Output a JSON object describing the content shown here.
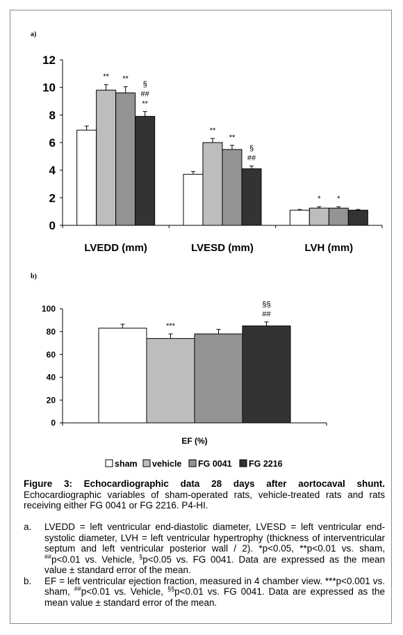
{
  "panel_a_label": "a)",
  "panel_b_label": "b)",
  "legend": [
    {
      "name": "sham",
      "color": "#ffffff"
    },
    {
      "name": "vehicle",
      "color": "#bdbdbd"
    },
    {
      "name": "FG 0041",
      "color": "#939393"
    },
    {
      "name": "FG 2216",
      "color": "#333333"
    }
  ],
  "chart_data": [
    {
      "type": "bar",
      "categories": [
        "LVEDD (mm)",
        "LVESD (mm)",
        "LVH (mm)"
      ],
      "series": [
        {
          "name": "sham",
          "values": [
            6.9,
            3.7,
            1.1
          ],
          "errors": [
            0.3,
            0.2,
            0.05
          ]
        },
        {
          "name": "vehicle",
          "values": [
            9.8,
            6.0,
            1.25
          ],
          "errors": [
            0.4,
            0.3,
            0.1
          ]
        },
        {
          "name": "FG 0041",
          "values": [
            9.6,
            5.5,
            1.25
          ],
          "errors": [
            0.45,
            0.3,
            0.1
          ]
        },
        {
          "name": "FG 2216",
          "values": [
            7.9,
            4.1,
            1.1
          ],
          "errors": [
            0.35,
            0.2,
            0.05
          ]
        }
      ],
      "annotations": [
        [
          "",
          "**",
          "**",
          "§\n##\n**"
        ],
        [
          "",
          "**",
          "**",
          "§\n##"
        ],
        [
          "",
          "*",
          "*",
          ""
        ]
      ],
      "ylim": [
        0,
        12
      ],
      "yticks": [
        "0",
        "2",
        "4",
        "6",
        "8",
        "10",
        "12"
      ],
      "grid": false
    },
    {
      "type": "bar",
      "categories": [
        "EF (%)"
      ],
      "xlabel": "EF (%)",
      "series": [
        {
          "name": "sham",
          "values": [
            83
          ],
          "errors": [
            3.5
          ]
        },
        {
          "name": "vehicle",
          "values": [
            74
          ],
          "errors": [
            4
          ]
        },
        {
          "name": "FG 0041",
          "values": [
            78
          ],
          "errors": [
            4
          ]
        },
        {
          "name": "FG 2216",
          "values": [
            85
          ],
          "errors": [
            3.5
          ]
        }
      ],
      "annotations": [
        [
          "",
          "***",
          "",
          "§§\n##"
        ]
      ],
      "ylim": [
        0,
        100
      ],
      "yticks": [
        "0",
        "20",
        "40",
        "60",
        "80",
        "100"
      ],
      "grid": false
    }
  ],
  "caption": {
    "title": "Figure 3: Echocardiographic data 28 days after aortocaval shunt.",
    "text": " Echocardiographic variables of sham-operated rats, vehicle-treated rats and rats receiving either FG 0041 or FG 2216. P4-HI."
  },
  "notes": [
    {
      "letter": "a.",
      "parts": [
        "LVEDD = left ventricular end-diastolic diameter, LVESD = left ventricular end-systolic diameter, LVH = left ventricular hypertrophy (thickness of interventricular septum and left ventricular posterior wall / 2). *p<0.05, **p<0.01 vs. sham, ",
        "##",
        "p<0.01 vs. Vehicle, ",
        "§",
        "p<0.05 vs. FG 0041.  Data are expressed as the mean value ± standard error of the mean."
      ]
    },
    {
      "letter": "b.",
      "parts": [
        "EF = left ventricular ejection fraction, measured in 4 chamber view. ***p<0.001 vs. sham, ",
        "##",
        "p<0.01 vs. Vehicle, ",
        "§§",
        "p<0.01 vs. FG 0041.  Data are expressed as the mean value ± standard error of the mean."
      ]
    }
  ]
}
